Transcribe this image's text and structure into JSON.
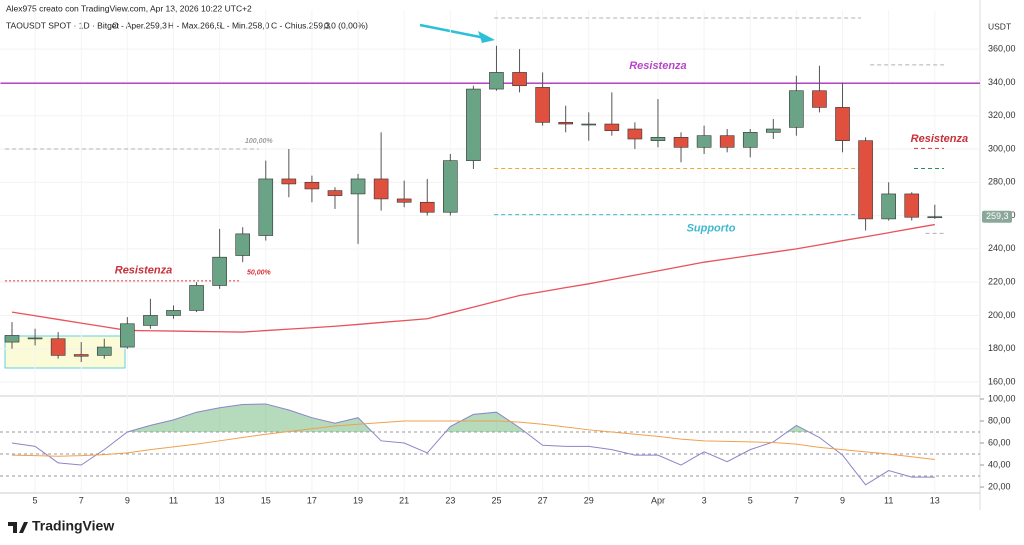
{
  "header": {
    "author": "Alex975 creato con TradingView.com, Apr 13, 2026 10:22 UTC+2",
    "symbol": "TAOUSDT SPOT · 1D · Bitget",
    "open": "O - Aper.259,3",
    "high": "H - Max.266,5",
    "low": "L - Min.258,0",
    "close": "C - Chius.259,3",
    "change": "0,0 (0,00%)",
    "currency": "USDT",
    "brand": "TradingView"
  },
  "chart_data": [
    {
      "type": "candlestick",
      "up_color": "#6aa386",
      "down_color": "#e0503f",
      "categories": [
        null,
        "5",
        null,
        "7",
        null,
        "9",
        null,
        "11",
        null,
        "13",
        null,
        "15",
        null,
        "17",
        null,
        "19",
        null,
        "21",
        null,
        "23",
        null,
        "25",
        null,
        "27",
        null,
        "29",
        null,
        null,
        "Apr",
        null,
        "3",
        null,
        "5",
        null,
        "7",
        null,
        "9",
        null,
        "11",
        null,
        "13"
      ],
      "open": [
        184,
        186,
        186,
        176.5,
        176,
        181,
        194,
        200,
        203,
        218,
        236,
        248,
        282,
        280,
        275,
        273,
        282,
        270,
        268,
        262,
        293,
        336,
        346,
        337,
        316,
        315,
        315,
        312,
        305,
        307,
        301,
        308,
        301,
        310,
        313,
        335,
        325,
        305,
        258,
        273,
        259.3
      ],
      "high": [
        196,
        192,
        190,
        184,
        186,
        199,
        210,
        206,
        220,
        252,
        253,
        293,
        300,
        284,
        277,
        285,
        310,
        281,
        282,
        297,
        338,
        362,
        360,
        346,
        326,
        322,
        334,
        316,
        330,
        310,
        314,
        312,
        312,
        318,
        344,
        350,
        340,
        307,
        280,
        274,
        266.5
      ],
      "low": [
        180,
        182,
        174,
        172,
        174,
        180,
        192,
        198,
        202,
        216,
        232,
        245,
        271,
        268,
        264,
        243,
        263,
        265,
        260,
        260,
        288,
        335,
        334,
        314,
        310,
        305,
        308,
        300,
        301,
        292,
        297,
        298,
        295,
        306,
        308,
        322,
        298,
        251,
        257,
        257,
        258
      ],
      "close": [
        188,
        186.5,
        176,
        175.5,
        181,
        195,
        200,
        203,
        218,
        235,
        249,
        282,
        279,
        276,
        272,
        282,
        270,
        268,
        262,
        293,
        336,
        346,
        338,
        316,
        315,
        315,
        311,
        306,
        307,
        301,
        308,
        301,
        310,
        312,
        335,
        325,
        305,
        258,
        273,
        259,
        259.3
      ],
      "ma": {
        "color": "#e8525b",
        "values": [
          202,
          199.8,
          197.6,
          195.4,
          193.2,
          191,
          190.8,
          190.6,
          190.4,
          190.2,
          190,
          190.9,
          191.8,
          192.6,
          193.5,
          194.6,
          195.8,
          196.9,
          198,
          201.5,
          205,
          208.5,
          212,
          214.3,
          216.7,
          219,
          221.6,
          224.2,
          226.8,
          229.4,
          232,
          234,
          236,
          238,
          240,
          242.4,
          244.9,
          247.3,
          249.7,
          252.2,
          254.6
        ]
      },
      "ylim": [
        151.6,
        383.5
      ],
      "yticks": [
        {
          "value": 160,
          "label": "160,00"
        },
        {
          "value": 180,
          "label": "180,00"
        },
        {
          "value": 200,
          "label": "200,00"
        },
        {
          "value": 220,
          "label": "220,00"
        },
        {
          "value": 240,
          "label": "240,00"
        },
        {
          "value": 260,
          "label": "260,00"
        },
        {
          "value": 280,
          "label": "280,00"
        },
        {
          "value": 300,
          "label": "300,00"
        },
        {
          "value": 320,
          "label": "320,00"
        },
        {
          "value": 340,
          "label": "340,00"
        },
        {
          "value": 360,
          "label": "360,00"
        }
      ],
      "last_price": {
        "value": 259.3,
        "label": "259,3"
      },
      "lines": [
        {
          "value": 339.5,
          "color": "#b845c8",
          "style": "solid",
          "from": -0.5,
          "to": 42
        },
        {
          "value": 220.8,
          "color": "#d9343a",
          "style": "dotted",
          "from": -0.3,
          "to": 9.9
        },
        {
          "value": 300.4,
          "color": "#d9343a",
          "style": "dashed",
          "from": 39.1,
          "to": 40.4
        },
        {
          "value": 288.3,
          "color": "#2e8b57",
          "style": "dashed",
          "from": 39.1,
          "to": 40.4
        },
        {
          "value": 288.3,
          "color": "#f0a830",
          "style": "dashed",
          "from": 20.9,
          "to": 36.8
        },
        {
          "value": 260.6,
          "color": "#3fb8d0",
          "style": "dashed",
          "from": 20.9,
          "to": 36.8
        },
        {
          "value": 378.7,
          "color": "#b0b0b0",
          "style": "dashed",
          "from": 20.9,
          "to": 36.8
        },
        {
          "value": 300,
          "color": "#b0b0b0",
          "style": "dashed",
          "from": -0.3,
          "to": 10.7
        },
        {
          "value": 350.5,
          "color": "#b0b0b0",
          "style": "dashed",
          "from": 37.2,
          "to": 40.4
        },
        {
          "value": 249.3,
          "color": "#b0b0b0",
          "style": "dashed",
          "from": 39.6,
          "to": 40.4
        }
      ],
      "annotations": [
        {
          "text": "Resistenza",
          "x": 28,
          "y": 349.7,
          "color": "#b845c8"
        },
        {
          "text": "Resistenza",
          "x": 5.7,
          "y": 226.9,
          "color": "#c8303a"
        },
        {
          "text": "Resistenza",
          "x": 40.2,
          "y": 305.8,
          "color": "#c8303a"
        },
        {
          "text": "Supporto",
          "x": 30.3,
          "y": 252.2,
          "color": "#3fb8d0"
        },
        {
          "text": "100,00%",
          "x": 10.7,
          "y": 304.6,
          "color": "#a0a0a0"
        },
        {
          "text": "50,00%",
          "x": 10.7,
          "y": 225.7,
          "color": "#d9343a"
        }
      ]
    },
    {
      "type": "line",
      "series": [
        {
          "color": "#8a86c8",
          "values": [
            60,
            57,
            42,
            40,
            54,
            70,
            76,
            81,
            88,
            92,
            95,
            95.5,
            90,
            83,
            78,
            83,
            62,
            60,
            51,
            75,
            86,
            88,
            74,
            58,
            57,
            57,
            54,
            49,
            49,
            40,
            52,
            43,
            54,
            61,
            76,
            65,
            49,
            22,
            35,
            29,
            29
          ]
        },
        {
          "color": "#f0a050",
          "values": [
            49,
            48.5,
            48,
            48.5,
            49.5,
            51,
            54,
            56.5,
            59,
            62,
            65,
            68,
            70.5,
            73,
            75.5,
            77,
            78.5,
            80,
            80,
            80,
            80,
            80,
            79,
            77,
            74.5,
            72,
            70,
            68,
            66,
            63.5,
            62,
            61.5,
            61,
            60.5,
            59,
            56,
            54,
            52,
            50,
            47.5,
            45
          ]
        }
      ],
      "fill_above": 70,
      "fill_color": "#5cae6a",
      "levels": [
        70,
        50,
        30
      ],
      "ylim": [
        15.5,
        100.9
      ],
      "yticks": [
        {
          "value": 20,
          "label": "20,00"
        },
        {
          "value": 40,
          "label": "40,00"
        },
        {
          "value": 60,
          "label": "60,00"
        },
        {
          "value": 80,
          "label": "80,00"
        },
        {
          "value": 100,
          "label": "100,00"
        }
      ]
    }
  ]
}
